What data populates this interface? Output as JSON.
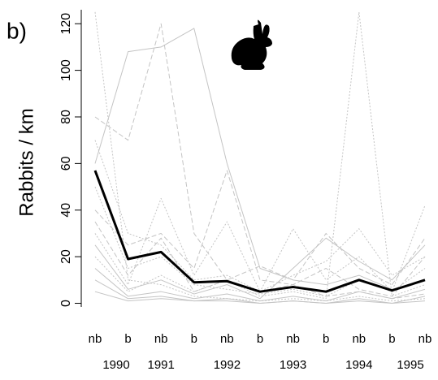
{
  "chart_data": {
    "type": "line",
    "panel_label": "b)",
    "ylabel": "Rabbits / km",
    "categories": [
      "nb",
      "b",
      "nb",
      "b",
      "nb",
      "b",
      "nb",
      "b",
      "nb",
      "b",
      "nb"
    ],
    "years": [
      "1990",
      null,
      "1991",
      null,
      "1992",
      null,
      "1993",
      null,
      "1994",
      null,
      "1995"
    ],
    "ylim": [
      -4,
      126
    ],
    "yticks": [
      0,
      20,
      40,
      60,
      80,
      100,
      120
    ],
    "series": [
      {
        "color": "#c4c4c4",
        "dash": "dotted",
        "values": [
          125,
          10,
          8,
          3,
          2,
          1,
          2,
          1,
          3,
          1,
          2
        ]
      },
      {
        "color": "#c4c4c4",
        "dash": "solid",
        "values": [
          60,
          108,
          110,
          118,
          60,
          15,
          10,
          8,
          12,
          6,
          10
        ]
      },
      {
        "color": "#c4c4c4",
        "dash": "dashed",
        "values": [
          80,
          70,
          120,
          30,
          10,
          5,
          8,
          3,
          5,
          2,
          4
        ]
      },
      {
        "color": "#c4c4c4",
        "dash": "dashed",
        "values": [
          40,
          25,
          30,
          15,
          57,
          10,
          8,
          15,
          6,
          3,
          20
        ]
      },
      {
        "color": "#c4c4c4",
        "dash": "dotted",
        "values": [
          30,
          8,
          45,
          12,
          35,
          5,
          32,
          10,
          20,
          5,
          15
        ]
      },
      {
        "color": "#c4c4c4",
        "dash": "dotted",
        "values": [
          20,
          5,
          12,
          5,
          10,
          3,
          5,
          2,
          125,
          3,
          8
        ]
      },
      {
        "color": "#c4c4c4",
        "dash": "solid",
        "values": [
          15,
          3,
          5,
          2,
          4,
          1,
          3,
          1,
          5,
          2,
          6
        ]
      },
      {
        "color": "#c4c4c4",
        "dash": "solid",
        "values": [
          10,
          2,
          3,
          1,
          2,
          0,
          1,
          0,
          2,
          0,
          3
        ]
      },
      {
        "color": "#c4c4c4",
        "dash": "dotted",
        "values": [
          50,
          15,
          20,
          8,
          6,
          4,
          6,
          3,
          10,
          5,
          42
        ]
      },
      {
        "color": "#c4c4c4",
        "dash": "solid",
        "values": [
          25,
          6,
          10,
          4,
          8,
          2,
          15,
          28,
          18,
          10,
          25
        ]
      },
      {
        "color": "#c4c4c4",
        "dash": "dashed",
        "values": [
          35,
          12,
          28,
          5,
          10,
          16,
          10,
          30,
          15,
          8,
          28
        ]
      },
      {
        "color": "#c4c4c4",
        "dash": "solid",
        "values": [
          5,
          1,
          2,
          1,
          1,
          0,
          1,
          0,
          1,
          0,
          1
        ]
      },
      {
        "color": "#c4c4c4",
        "dash": "dotted",
        "values": [
          70,
          30,
          25,
          10,
          12,
          5,
          12,
          18,
          32,
          12,
          20
        ]
      },
      {
        "color": "#000000",
        "dash": "solid",
        "width": 3,
        "values": [
          57,
          19,
          22,
          9,
          9.5,
          5,
          7,
          5,
          10,
          5.5,
          10
        ]
      }
    ]
  }
}
